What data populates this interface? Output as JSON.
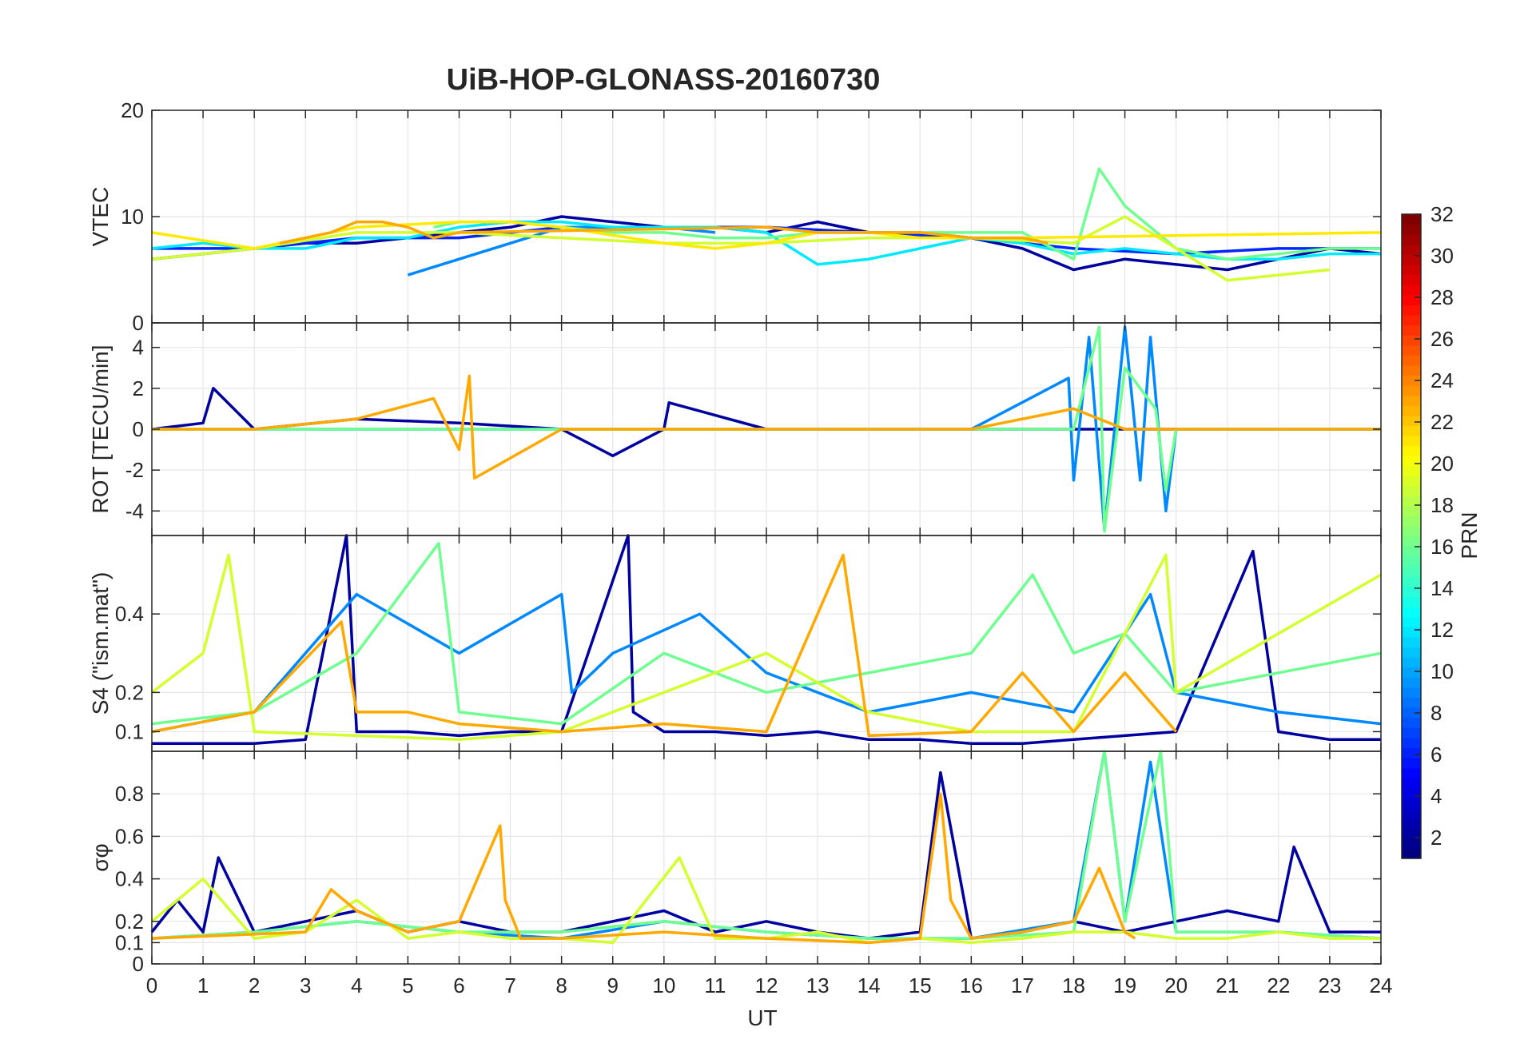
{
  "title": "UiB-HOP-GLONASS-20160730",
  "colorbar": {
    "label": "PRN",
    "ticks": [
      2,
      4,
      6,
      8,
      10,
      12,
      14,
      16,
      18,
      20,
      22,
      24,
      26,
      28,
      30,
      32
    ],
    "range": [
      1,
      32
    ],
    "colormap": "jet"
  },
  "chart_data": [
    {
      "type": "line",
      "panel": "vtec",
      "ylabel": "VTEC",
      "ylim": [
        0,
        20
      ],
      "yticks": [
        0,
        10,
        20
      ],
      "xlim": [
        0,
        24
      ],
      "grid": true,
      "series": [
        {
          "prn": 2,
          "x": [
            0,
            1,
            2,
            3,
            4,
            5,
            6,
            7,
            8,
            9,
            10,
            11,
            12,
            13,
            14,
            15,
            16,
            17,
            18,
            19,
            20,
            21,
            22,
            23,
            24
          ],
          "y": [
            6,
            6.5,
            7,
            7.5,
            7.5,
            8,
            8.5,
            9,
            10,
            9.5,
            9,
            9,
            8.5,
            9.5,
            8.5,
            8.5,
            8,
            7,
            5,
            6,
            5.5,
            5,
            6,
            7,
            6.5
          ]
        },
        {
          "prn": 6,
          "x": [
            0,
            2,
            4,
            6,
            8,
            10,
            12,
            14,
            16,
            18,
            20,
            22,
            24
          ],
          "y": [
            7,
            7,
            8,
            8,
            9,
            9,
            9,
            8.5,
            8,
            7,
            6.5,
            7,
            7
          ]
        },
        {
          "prn": 9,
          "x": [
            5,
            6,
            7,
            8,
            9,
            10,
            11
          ],
          "y": [
            4.5,
            6,
            7.5,
            9,
            9,
            9,
            8.5
          ]
        },
        {
          "prn": 12,
          "x": [
            0,
            1,
            2,
            3,
            4,
            5,
            6,
            7,
            8,
            9,
            10,
            11,
            12,
            13,
            14,
            15,
            16,
            17,
            18,
            19,
            20,
            21,
            22,
            23,
            24
          ],
          "y": [
            7,
            7.5,
            7,
            7,
            8,
            8,
            9,
            9.5,
            9.5,
            9,
            9,
            9,
            8.5,
            5.5,
            6,
            7,
            8,
            7.5,
            6.5,
            7,
            6.5,
            6,
            6,
            6.5,
            6.5
          ]
        },
        {
          "prn": 16,
          "x": [
            5.5,
            6,
            7,
            8,
            9,
            10,
            11,
            12,
            13,
            14,
            15,
            16,
            17,
            18,
            18.5,
            19,
            20,
            21,
            22,
            23,
            24
          ],
          "y": [
            9,
            9.5,
            9.5,
            9,
            8.5,
            8.5,
            8,
            8,
            8.5,
            8.5,
            8.5,
            8.5,
            8.5,
            6,
            14.5,
            11,
            7,
            6,
            6.5,
            7,
            7
          ]
        },
        {
          "prn": 19,
          "x": [
            0,
            2,
            4,
            6,
            8,
            10,
            12,
            14,
            16,
            18,
            19,
            20,
            21,
            22,
            23
          ],
          "y": [
            6,
            7,
            8.5,
            8.5,
            8,
            7.5,
            7.5,
            8,
            8,
            7.5,
            10,
            7,
            4,
            4.5,
            5
          ]
        },
        {
          "prn": 21,
          "x": [
            0,
            2,
            4,
            6,
            7,
            8,
            10,
            11,
            12,
            13,
            14,
            15,
            16,
            17,
            24
          ],
          "y": [
            8.5,
            7,
            9,
            9.5,
            9.5,
            9,
            7.5,
            7,
            7.5,
            8.5,
            8.5,
            8,
            8,
            8,
            8.5
          ]
        },
        {
          "prn": 23,
          "x": [
            2.5,
            3,
            3.5,
            4,
            4.5,
            5,
            5.5,
            6,
            12,
            13,
            14,
            15,
            16,
            17,
            17.5
          ],
          "y": [
            7.5,
            8,
            8.5,
            9.5,
            9.5,
            9,
            8,
            8.5,
            9,
            8.5,
            8.5,
            8.5,
            8,
            8,
            7.5
          ]
        }
      ]
    },
    {
      "type": "line",
      "panel": "rot",
      "ylabel": "ROT [TECU/min]",
      "ylim": [
        -5.2,
        5.2
      ],
      "yticks": [
        -4,
        -2,
        0,
        2,
        4
      ],
      "xlim": [
        0,
        24
      ],
      "grid": true,
      "series": [
        {
          "prn": 2,
          "x": [
            0,
            1,
            1.2,
            2,
            4,
            6,
            8,
            9,
            10,
            10.1,
            12,
            14,
            16,
            18,
            20,
            22,
            24
          ],
          "y": [
            0,
            0.3,
            2,
            0,
            0.5,
            0.3,
            0,
            -1.3,
            0,
            1.3,
            0,
            0,
            0,
            0,
            0,
            0,
            0
          ]
        },
        {
          "prn": 9,
          "x": [
            0,
            4,
            8,
            12,
            16,
            17.9,
            18,
            18.3,
            18.6,
            19,
            19.3,
            19.5,
            19.8,
            20,
            24
          ],
          "y": [
            0,
            0,
            0,
            0,
            0,
            2.5,
            -2.5,
            4.5,
            -4.9,
            5,
            -2.5,
            4.5,
            -4,
            0,
            0
          ]
        },
        {
          "prn": 16,
          "x": [
            0,
            4,
            8,
            12,
            16,
            18,
            18.5,
            18.6,
            19,
            19.6,
            19.8,
            20,
            24
          ],
          "y": [
            0,
            0,
            0,
            0,
            0,
            0,
            5,
            -5,
            3,
            1,
            -3,
            0,
            0
          ]
        },
        {
          "prn": 23,
          "x": [
            0,
            2,
            4,
            5.5,
            6,
            6.2,
            6.3,
            8,
            12,
            16,
            18,
            19,
            20,
            24
          ],
          "y": [
            0,
            0,
            0.5,
            1.5,
            -1,
            2.6,
            -2.4,
            0,
            0,
            0,
            1,
            0,
            0,
            0
          ]
        }
      ]
    },
    {
      "type": "line",
      "panel": "s4",
      "ylabel": "S4 (\"ism.mat\")",
      "ylim": [
        0.05,
        0.6
      ],
      "yticks": [
        0.1,
        0.2,
        0.4
      ],
      "ytick_labels": [
        "0.1",
        "0.2",
        "0.4"
      ],
      "xlim": [
        0,
        24
      ],
      "grid": true,
      "series": [
        {
          "prn": 2,
          "x": [
            0,
            1,
            2,
            3,
            3.8,
            4,
            5,
            6,
            7,
            8,
            9.3,
            9.4,
            10,
            11,
            12,
            13,
            14,
            15,
            16,
            17,
            18,
            19,
            20,
            21.5,
            22,
            23,
            24
          ],
          "y": [
            0.07,
            0.07,
            0.07,
            0.08,
            0.6,
            0.1,
            0.1,
            0.09,
            0.1,
            0.1,
            0.6,
            0.15,
            0.1,
            0.1,
            0.09,
            0.1,
            0.08,
            0.08,
            0.07,
            0.07,
            0.08,
            0.09,
            0.1,
            0.56,
            0.1,
            0.08,
            0.08
          ]
        },
        {
          "prn": 9,
          "x": [
            0,
            2,
            4,
            6,
            8,
            8.2,
            9,
            10.7,
            12,
            14,
            16,
            18,
            19.5,
            20,
            22,
            24
          ],
          "y": [
            0.1,
            0.15,
            0.45,
            0.3,
            0.45,
            0.2,
            0.3,
            0.4,
            0.25,
            0.15,
            0.2,
            0.15,
            0.45,
            0.2,
            0.15,
            0.12
          ]
        },
        {
          "prn": 16,
          "x": [
            0,
            2,
            4,
            5.6,
            6,
            8,
            10,
            12,
            14,
            16,
            17.2,
            18,
            19,
            20,
            22,
            24
          ],
          "y": [
            0.12,
            0.15,
            0.3,
            0.58,
            0.15,
            0.12,
            0.3,
            0.2,
            0.25,
            0.3,
            0.5,
            0.3,
            0.35,
            0.2,
            0.25,
            0.3
          ]
        },
        {
          "prn": 19,
          "x": [
            0,
            1,
            1.5,
            2,
            4,
            6,
            8,
            10,
            12,
            14,
            16,
            18,
            19.8,
            20,
            22,
            24
          ],
          "y": [
            0.2,
            0.3,
            0.55,
            0.1,
            0.09,
            0.08,
            0.1,
            0.2,
            0.3,
            0.15,
            0.1,
            0.1,
            0.55,
            0.2,
            0.35,
            0.5
          ]
        },
        {
          "prn": 23,
          "x": [
            0,
            2,
            3.7,
            4,
            5,
            6,
            8,
            10,
            12,
            13.5,
            14,
            16,
            17,
            18,
            19,
            20
          ],
          "y": [
            0.1,
            0.15,
            0.38,
            0.15,
            0.15,
            0.12,
            0.1,
            0.12,
            0.1,
            0.55,
            0.09,
            0.1,
            0.25,
            0.1,
            0.25,
            0.1
          ]
        }
      ]
    },
    {
      "type": "line",
      "panel": "sigma_phi",
      "ylabel": "σφ",
      "ylim": [
        0,
        1
      ],
      "yticks": [
        0,
        0.1,
        0.2,
        0.4,
        0.6,
        0.8
      ],
      "xlim": [
        0,
        24
      ],
      "xlabel": "UT",
      "xticks": [
        0,
        1,
        2,
        3,
        4,
        5,
        6,
        7,
        8,
        9,
        10,
        11,
        12,
        13,
        14,
        15,
        16,
        17,
        18,
        19,
        20,
        21,
        22,
        23,
        24
      ],
      "grid": true,
      "series": [
        {
          "prn": 2,
          "x": [
            0,
            0.5,
            1,
            1.3,
            2,
            3,
            4,
            5,
            6,
            7,
            8,
            9,
            10,
            11,
            12,
            13,
            14,
            15,
            15.4,
            16,
            17,
            18,
            19,
            20,
            21,
            22,
            22.3,
            23,
            24
          ],
          "y": [
            0.15,
            0.3,
            0.15,
            0.5,
            0.15,
            0.2,
            0.25,
            0.15,
            0.2,
            0.15,
            0.15,
            0.2,
            0.25,
            0.15,
            0.2,
            0.15,
            0.12,
            0.15,
            0.9,
            0.12,
            0.15,
            0.2,
            0.15,
            0.2,
            0.25,
            0.2,
            0.55,
            0.15,
            0.15
          ]
        },
        {
          "prn": 9,
          "x": [
            0,
            2,
            4,
            6,
            8,
            10,
            12,
            14,
            16,
            18,
            18.6,
            19,
            19.5,
            20,
            22,
            24
          ],
          "y": [
            0.12,
            0.15,
            0.2,
            0.15,
            0.12,
            0.2,
            0.15,
            0.12,
            0.12,
            0.2,
            1,
            0.2,
            0.95,
            0.15,
            0.15,
            0.12
          ]
        },
        {
          "prn": 16,
          "x": [
            0,
            2,
            4,
            6,
            8,
            10,
            12,
            14,
            16,
            18,
            18.6,
            19,
            19.7,
            20,
            22,
            24
          ],
          "y": [
            0.12,
            0.15,
            0.2,
            0.15,
            0.15,
            0.2,
            0.15,
            0.12,
            0.12,
            0.15,
            1,
            0.2,
            1,
            0.15,
            0.15,
            0.12
          ]
        },
        {
          "prn": 19,
          "x": [
            0,
            1,
            2,
            3,
            4,
            5,
            6,
            7,
            8,
            9,
            10.3,
            11,
            12,
            13,
            14,
            15,
            16,
            17,
            18,
            19,
            20,
            21,
            22,
            23,
            24
          ],
          "y": [
            0.2,
            0.4,
            0.12,
            0.15,
            0.3,
            0.12,
            0.15,
            0.12,
            0.12,
            0.1,
            0.5,
            0.12,
            0.12,
            0.15,
            0.1,
            0.12,
            0.1,
            0.12,
            0.15,
            0.15,
            0.12,
            0.12,
            0.15,
            0.12,
            0.12
          ]
        },
        {
          "prn": 23,
          "x": [
            0,
            3,
            3.5,
            4,
            5,
            6,
            6.8,
            6.9,
            7.2,
            8,
            10,
            12,
            14,
            15,
            15.4,
            15.6,
            16,
            17,
            18,
            18.5,
            19,
            19.2
          ],
          "y": [
            0.12,
            0.15,
            0.35,
            0.25,
            0.15,
            0.2,
            0.65,
            0.3,
            0.12,
            0.12,
            0.15,
            0.12,
            0.1,
            0.12,
            0.8,
            0.3,
            0.12,
            0.15,
            0.2,
            0.45,
            0.15,
            0.12
          ]
        }
      ]
    }
  ]
}
